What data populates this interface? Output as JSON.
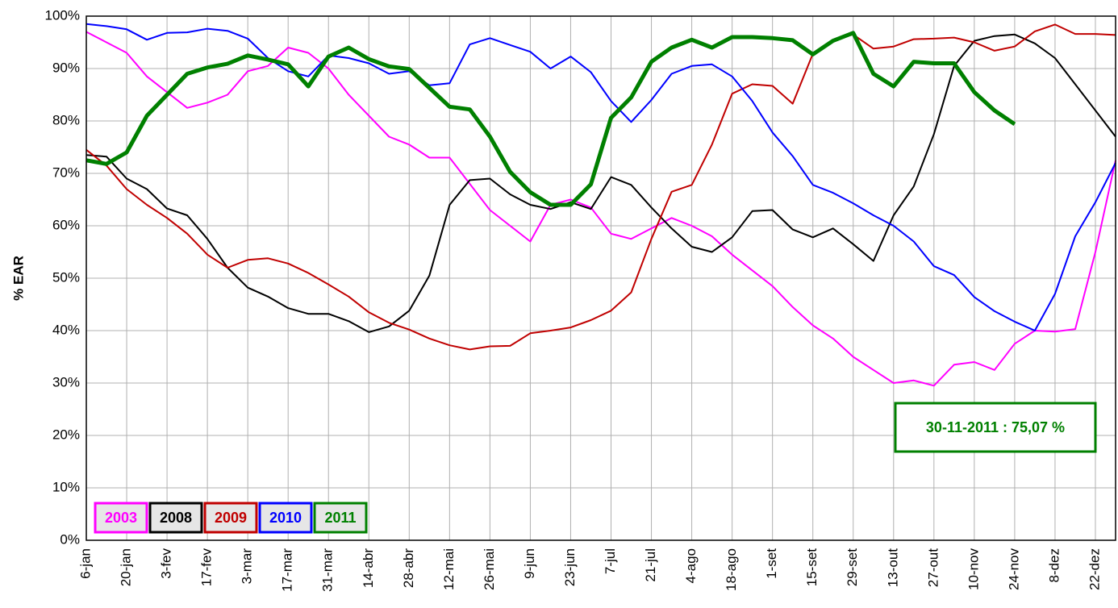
{
  "chart_data": {
    "type": "line",
    "ylabel": "% EAR",
    "annotation": "30-11-2011 : 75,07 %",
    "categories": [
      "6-jan",
      null,
      "20-jan",
      null,
      "3-fev",
      null,
      "17-fev",
      null,
      "3-mar",
      null,
      "17-mar",
      null,
      "31-mar",
      null,
      "14-abr",
      null,
      "28-abr",
      null,
      "12-mai",
      null,
      "26-mai",
      null,
      "9-jun",
      null,
      "23-jun",
      null,
      "7-jul",
      null,
      "21-jul",
      null,
      "4-ago",
      null,
      "18-ago",
      null,
      "1-set",
      null,
      "15-set",
      null,
      "29-set",
      null,
      "13-out",
      null,
      "27-out",
      null,
      "10-nov",
      null,
      "24-nov",
      null,
      "8-dez",
      null,
      "22-dez",
      null
    ],
    "ylim": [
      0,
      100
    ],
    "yticks": [
      {
        "value": 0,
        "label": "0%"
      },
      {
        "value": 10,
        "label": "10%"
      },
      {
        "value": 20,
        "label": "20%"
      },
      {
        "value": 30,
        "label": "30%"
      },
      {
        "value": 40,
        "label": "40%"
      },
      {
        "value": 50,
        "label": "50%"
      },
      {
        "value": 60,
        "label": "60%"
      },
      {
        "value": 70,
        "label": "70%"
      },
      {
        "value": 80,
        "label": "80%"
      },
      {
        "value": 90,
        "label": "90%"
      },
      {
        "value": 100,
        "label": "100%"
      }
    ],
    "grid": true,
    "series": [
      {
        "name": "2003",
        "color": "#ff00ff",
        "values": [
          97,
          95,
          93,
          88.5,
          85.5,
          82.5,
          83.5,
          85,
          89.5,
          90.5,
          94,
          93,
          90,
          85,
          81,
          77,
          75.5,
          73,
          73,
          68,
          63,
          60,
          57,
          64,
          65,
          63.5,
          58.5,
          57.5,
          59.5,
          61.5,
          60,
          58,
          54.5,
          51.5,
          48.5,
          44.5,
          41,
          38.5,
          35,
          32.5,
          30,
          30.5,
          29.5,
          33.5,
          34,
          32.5,
          37.5,
          40,
          39.8,
          40.3,
          55,
          72.5
        ]
      },
      {
        "name": "2008",
        "color": "#000000",
        "values": [
          73.5,
          73.2,
          69,
          67,
          63.3,
          62,
          57.5,
          52,
          48.2,
          46.5,
          44.3,
          43.2,
          43.2,
          41.8,
          39.7,
          40.8,
          43.8,
          50.5,
          64,
          68.7,
          69,
          66,
          64,
          63.2,
          64.5,
          63.2,
          69.3,
          67.8,
          63.5,
          59.5,
          56,
          55,
          57.8,
          62.8,
          63,
          59.3,
          57.8,
          59.5,
          56.5,
          53.3,
          62,
          67.5,
          77.5,
          90.5,
          95.3,
          96.2,
          96.5,
          94.8,
          92,
          87,
          82,
          77
        ]
      },
      {
        "name": "2009",
        "color": "#c00000",
        "values": [
          74.5,
          71.5,
          67,
          64,
          61.5,
          58.5,
          54.5,
          52,
          53.5,
          53.8,
          52.8,
          51,
          48.8,
          46.5,
          43.5,
          41.5,
          40.2,
          38.5,
          37.2,
          36.4,
          37,
          37.1,
          39.5,
          40,
          40.6,
          42,
          43.8,
          47.3,
          57.5,
          66.5,
          67.8,
          75.5,
          85.2,
          87,
          86.7,
          83.3,
          92.8,
          95.5,
          96.5,
          93.8,
          94.2,
          95.6,
          95.7,
          95.9,
          95,
          93.4,
          94.2,
          97.1,
          98.4,
          96.6,
          96.6,
          96.4
        ]
      },
      {
        "name": "2010",
        "color": "#0000ff",
        "values": [
          98.5,
          98.1,
          97.5,
          95.5,
          96.8,
          96.9,
          97.6,
          97.2,
          95.7,
          92,
          89.5,
          88.5,
          92.5,
          92,
          91,
          89,
          89.5,
          86.8,
          87.2,
          94.6,
          95.8,
          94.5,
          93.2,
          90,
          92.3,
          89.3,
          83.8,
          79.8,
          84,
          89,
          90.5,
          90.8,
          88.5,
          83.8,
          77.8,
          73.3,
          67.8,
          66.3,
          64.3,
          62,
          60,
          57,
          52.3,
          50.6,
          46.4,
          43.7,
          41.7,
          40,
          47,
          58,
          64.5,
          72
        ]
      },
      {
        "name": "2011",
        "color": "#008000",
        "values": [
          72.5,
          71.8,
          74,
          81,
          85,
          89,
          90.2,
          90.9,
          92.5,
          91.7,
          90.8,
          86.6,
          92.3,
          94,
          91.8,
          90.4,
          89.9,
          86.3,
          82.7,
          82.2,
          77,
          70.3,
          66.4,
          64,
          64,
          67.9,
          80.6,
          84.5,
          91.3,
          94,
          95.5,
          94,
          96,
          96,
          95.8,
          95.4,
          92.7,
          95.3,
          96.8,
          89,
          86.6,
          91.3,
          91,
          91,
          85.5,
          82,
          79.4,
          null,
          null,
          null,
          null,
          null
        ]
      }
    ]
  }
}
